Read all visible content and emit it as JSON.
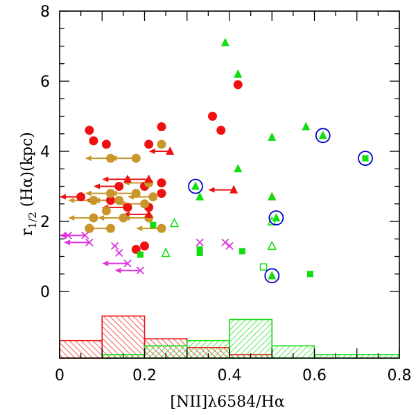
{
  "chart_data": {
    "type": "scatter",
    "title": "",
    "xlabel": "[NII]λ6584/Hα",
    "ylabel": "r1/2 (Hα)(kpc)",
    "ylabel_main": "r",
    "ylabel_sub": "1/2",
    "ylabel_rest": " (Hα)(kpc)",
    "xlim": [
      0,
      0.8
    ],
    "ylim": [
      -1.9,
      8
    ],
    "x_ticks": [
      0,
      0.2,
      0.4,
      0.6,
      0.8
    ],
    "x_tick_labels": [
      "0",
      "0.2",
      "0.4",
      "0.6",
      "0.8"
    ],
    "y_ticks": [
      0,
      2,
      4,
      6,
      8
    ],
    "y_tick_labels": [
      "0",
      "2",
      "4",
      "6",
      "8"
    ],
    "colors": {
      "red": "#ee1111",
      "gold": "#c8962a",
      "green": "#11dd11",
      "magenta": "#dd33dd",
      "blue": "#0000cc"
    },
    "series": [
      {
        "name": "red-circles",
        "marker": "circle",
        "color": "red",
        "points": [
          [
            0.07,
            4.6
          ],
          [
            0.08,
            4.3
          ],
          [
            0.11,
            4.2
          ],
          [
            0.24,
            4.7
          ],
          [
            0.21,
            4.2
          ],
          [
            0.42,
            5.9
          ],
          [
            0.36,
            5.0
          ],
          [
            0.38,
            4.6
          ],
          [
            0.14,
            3.0
          ],
          [
            0.2,
            3.0
          ],
          [
            0.24,
            3.1
          ],
          [
            0.24,
            2.8
          ],
          [
            0.05,
            2.7
          ],
          [
            0.12,
            2.6
          ],
          [
            0.16,
            2.4
          ],
          [
            0.21,
            2.4
          ],
          [
            0.07,
            1.8
          ],
          [
            0.18,
            1.2
          ],
          [
            0.2,
            1.3
          ]
        ]
      },
      {
        "name": "gold-circles",
        "marker": "circle",
        "color": "gold",
        "points": [
          [
            0.24,
            4.2
          ],
          [
            0.12,
            3.8
          ],
          [
            0.18,
            3.8
          ],
          [
            0.12,
            2.8
          ],
          [
            0.18,
            2.8
          ],
          [
            0.21,
            3.1
          ],
          [
            0.08,
            2.6
          ],
          [
            0.14,
            2.6
          ],
          [
            0.2,
            2.5
          ],
          [
            0.22,
            2.7
          ],
          [
            0.11,
            2.3
          ],
          [
            0.08,
            2.1
          ],
          [
            0.15,
            2.1
          ],
          [
            0.21,
            2.1
          ],
          [
            0.07,
            1.8
          ],
          [
            0.12,
            1.8
          ],
          [
            0.24,
            1.8
          ]
        ]
      },
      {
        "name": "red-triangles",
        "marker": "triangle",
        "color": "red",
        "points": [
          [
            0.26,
            4.0
          ],
          [
            0.16,
            3.2
          ],
          [
            0.21,
            3.2
          ],
          [
            0.41,
            2.9
          ],
          [
            0.5,
            2.7
          ],
          [
            0.21,
            2.2
          ]
        ]
      },
      {
        "name": "green-triangles",
        "marker": "triangle",
        "color": "green",
        "points": [
          [
            0.39,
            7.1
          ],
          [
            0.42,
            6.2
          ],
          [
            0.5,
            4.4
          ],
          [
            0.58,
            4.7
          ],
          [
            0.62,
            4.45
          ],
          [
            0.42,
            3.5
          ],
          [
            0.32,
            3.0
          ],
          [
            0.33,
            2.7
          ],
          [
            0.5,
            2.7
          ],
          [
            0.51,
            2.1
          ],
          [
            0.5,
            0.45
          ]
        ]
      },
      {
        "name": "green-open-triangles",
        "marker": "open-triangle",
        "color": "green",
        "points": [
          [
            0.27,
            1.95
          ],
          [
            0.25,
            1.1
          ],
          [
            0.5,
            1.3
          ],
          [
            0.5,
            2.0
          ]
        ]
      },
      {
        "name": "green-squares",
        "marker": "square",
        "color": "green",
        "points": [
          [
            0.72,
            3.8
          ],
          [
            0.22,
            1.9
          ],
          [
            0.33,
            1.2
          ],
          [
            0.33,
            1.1
          ],
          [
            0.43,
            1.15
          ],
          [
            0.19,
            1.05
          ],
          [
            0.59,
            0.5
          ]
        ]
      },
      {
        "name": "green-open-squares",
        "marker": "open-square",
        "color": "green",
        "points": [
          [
            0.48,
            0.7
          ]
        ]
      },
      {
        "name": "magenta-crosses",
        "marker": "cross",
        "color": "magenta",
        "points": [
          [
            0.02,
            1.6
          ],
          [
            0.06,
            1.6
          ],
          [
            0.07,
            1.4
          ],
          [
            0.13,
            1.3
          ],
          [
            0.14,
            1.1
          ],
          [
            0.16,
            0.8
          ],
          [
            0.19,
            0.6
          ],
          [
            0.33,
            1.4
          ],
          [
            0.39,
            1.4
          ],
          [
            0.4,
            1.3
          ]
        ]
      },
      {
        "name": "blue-circled",
        "marker": "open-circle",
        "color": "blue",
        "points": [
          [
            0.32,
            3.0
          ],
          [
            0.62,
            4.45
          ],
          [
            0.72,
            3.8
          ],
          [
            0.51,
            2.1
          ],
          [
            0.5,
            0.45
          ]
        ]
      }
    ],
    "upper_limits": [
      {
        "color": "red",
        "x": 0.26,
        "y": 4.0,
        "x_to": 0.21
      },
      {
        "color": "red",
        "x": 0.16,
        "y": 3.2,
        "x_to": 0.1
      },
      {
        "color": "red",
        "x": 0.21,
        "y": 3.2,
        "x_to": 0.15
      },
      {
        "color": "red",
        "x": 0.41,
        "y": 2.9,
        "x_to": 0.35
      },
      {
        "color": "red",
        "x": 0.21,
        "y": 2.2,
        "x_to": 0.15
      },
      {
        "color": "red",
        "x": 0.14,
        "y": 3.0,
        "x_to": 0.08
      },
      {
        "color": "red",
        "x": 0.05,
        "y": 2.7,
        "x_to": 0.0
      },
      {
        "color": "red",
        "x": 0.12,
        "y": 2.6,
        "x_to": 0.06
      },
      {
        "color": "red",
        "x": 0.16,
        "y": 2.4,
        "x_to": 0.1
      },
      {
        "color": "gold",
        "x": 0.12,
        "y": 3.8,
        "x_to": 0.06
      },
      {
        "color": "gold",
        "x": 0.18,
        "y": 3.8,
        "x_to": 0.12
      },
      {
        "color": "gold",
        "x": 0.12,
        "y": 2.8,
        "x_to": 0.06
      },
      {
        "color": "gold",
        "x": 0.18,
        "y": 2.8,
        "x_to": 0.12
      },
      {
        "color": "gold",
        "x": 0.21,
        "y": 3.1,
        "x_to": 0.15
      },
      {
        "color": "gold",
        "x": 0.08,
        "y": 2.6,
        "x_to": 0.02
      },
      {
        "color": "gold",
        "x": 0.14,
        "y": 2.6,
        "x_to": 0.08
      },
      {
        "color": "gold",
        "x": 0.2,
        "y": 2.5,
        "x_to": 0.14
      },
      {
        "color": "gold",
        "x": 0.22,
        "y": 2.7,
        "x_to": 0.16
      },
      {
        "color": "gold",
        "x": 0.08,
        "y": 2.1,
        "x_to": 0.02
      },
      {
        "color": "gold",
        "x": 0.15,
        "y": 2.1,
        "x_to": 0.09
      },
      {
        "color": "gold",
        "x": 0.21,
        "y": 2.1,
        "x_to": 0.15
      },
      {
        "color": "gold",
        "x": 0.12,
        "y": 1.8,
        "x_to": 0.06
      },
      {
        "color": "gold",
        "x": 0.24,
        "y": 1.8,
        "x_to": 0.18
      },
      {
        "color": "magenta",
        "x": 0.06,
        "y": 1.6,
        "x_to": 0.0
      },
      {
        "color": "magenta",
        "x": 0.07,
        "y": 1.4,
        "x_to": 0.01
      },
      {
        "color": "magenta",
        "x": 0.16,
        "y": 0.8,
        "x_to": 0.1
      },
      {
        "color": "magenta",
        "x": 0.19,
        "y": 0.6,
        "x_to": 0.13
      },
      {
        "color": "magenta",
        "x": 0.02,
        "y": 1.6,
        "x_to": 0.0
      }
    ],
    "histograms": [
      {
        "name": "red-histogram",
        "color": "red",
        "baseline": -1.9,
        "bins": [
          [
            0.0,
            0.1,
            -1.4
          ],
          [
            0.1,
            0.2,
            -0.7
          ],
          [
            0.2,
            0.3,
            -1.35
          ],
          [
            0.3,
            0.4,
            -1.6
          ],
          [
            0.4,
            0.5,
            -1.8
          ]
        ]
      },
      {
        "name": "green-histogram",
        "color": "green",
        "baseline": -1.9,
        "bins": [
          [
            0.1,
            0.2,
            -1.8
          ],
          [
            0.2,
            0.3,
            -1.55
          ],
          [
            0.3,
            0.4,
            -1.4
          ],
          [
            0.4,
            0.5,
            -0.8
          ],
          [
            0.5,
            0.6,
            -1.55
          ],
          [
            0.6,
            0.7,
            -1.8
          ],
          [
            0.7,
            0.8,
            -1.8
          ]
        ]
      }
    ]
  }
}
